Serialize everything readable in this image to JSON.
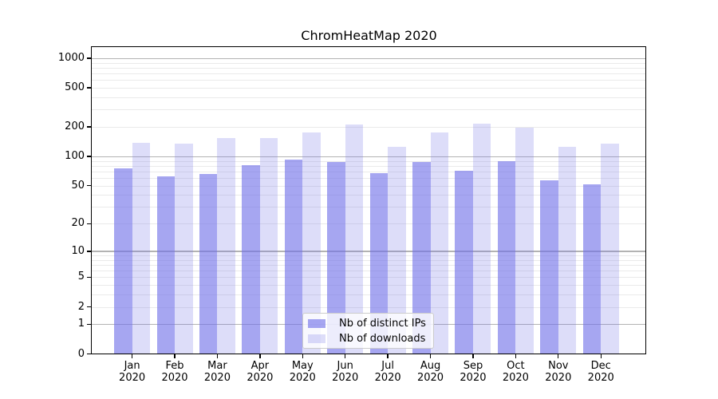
{
  "chart_data": {
    "type": "bar",
    "title": "ChromHeatMap 2020",
    "categories": [
      "Jan",
      "Feb",
      "Mar",
      "Apr",
      "May",
      "Jun",
      "Jul",
      "Aug",
      "Sep",
      "Oct",
      "Nov",
      "Dec"
    ],
    "category_year": "2020",
    "series": [
      {
        "name": "Nb of distinct IPs",
        "color": "rgba(112,112,232,0.62)",
        "values": [
          75,
          62,
          66,
          82,
          92,
          87,
          67,
          87,
          71,
          90,
          57,
          52
        ]
      },
      {
        "name": "Nb of downloads",
        "color": "rgba(112,112,232,0.24)",
        "values": [
          139,
          135,
          153,
          153,
          175,
          213,
          125,
          175,
          215,
          196,
          125,
          135
        ]
      }
    ],
    "yscale": "log1p",
    "y_ticks": [
      0,
      1,
      2,
      5,
      10,
      20,
      50,
      100,
      200,
      500,
      1000
    ],
    "y_minor_gridlines": [
      2,
      3,
      4,
      5,
      6,
      7,
      8,
      9,
      20,
      30,
      40,
      50,
      60,
      70,
      80,
      90,
      200,
      300,
      400,
      500,
      600,
      700,
      800,
      900
    ],
    "y_major_gridlines": [
      1,
      10,
      100,
      1000
    ],
    "ylim": [
      0,
      1300
    ],
    "grid": "horizontal",
    "legend_position": "lower center"
  },
  "colors": {
    "bar_base": "#7070e8",
    "grid_major": "#b3b3b3",
    "grid_minor": "#eaeaea",
    "spine": "#000000",
    "legend_border": "#cccccc",
    "text": "#000000"
  }
}
